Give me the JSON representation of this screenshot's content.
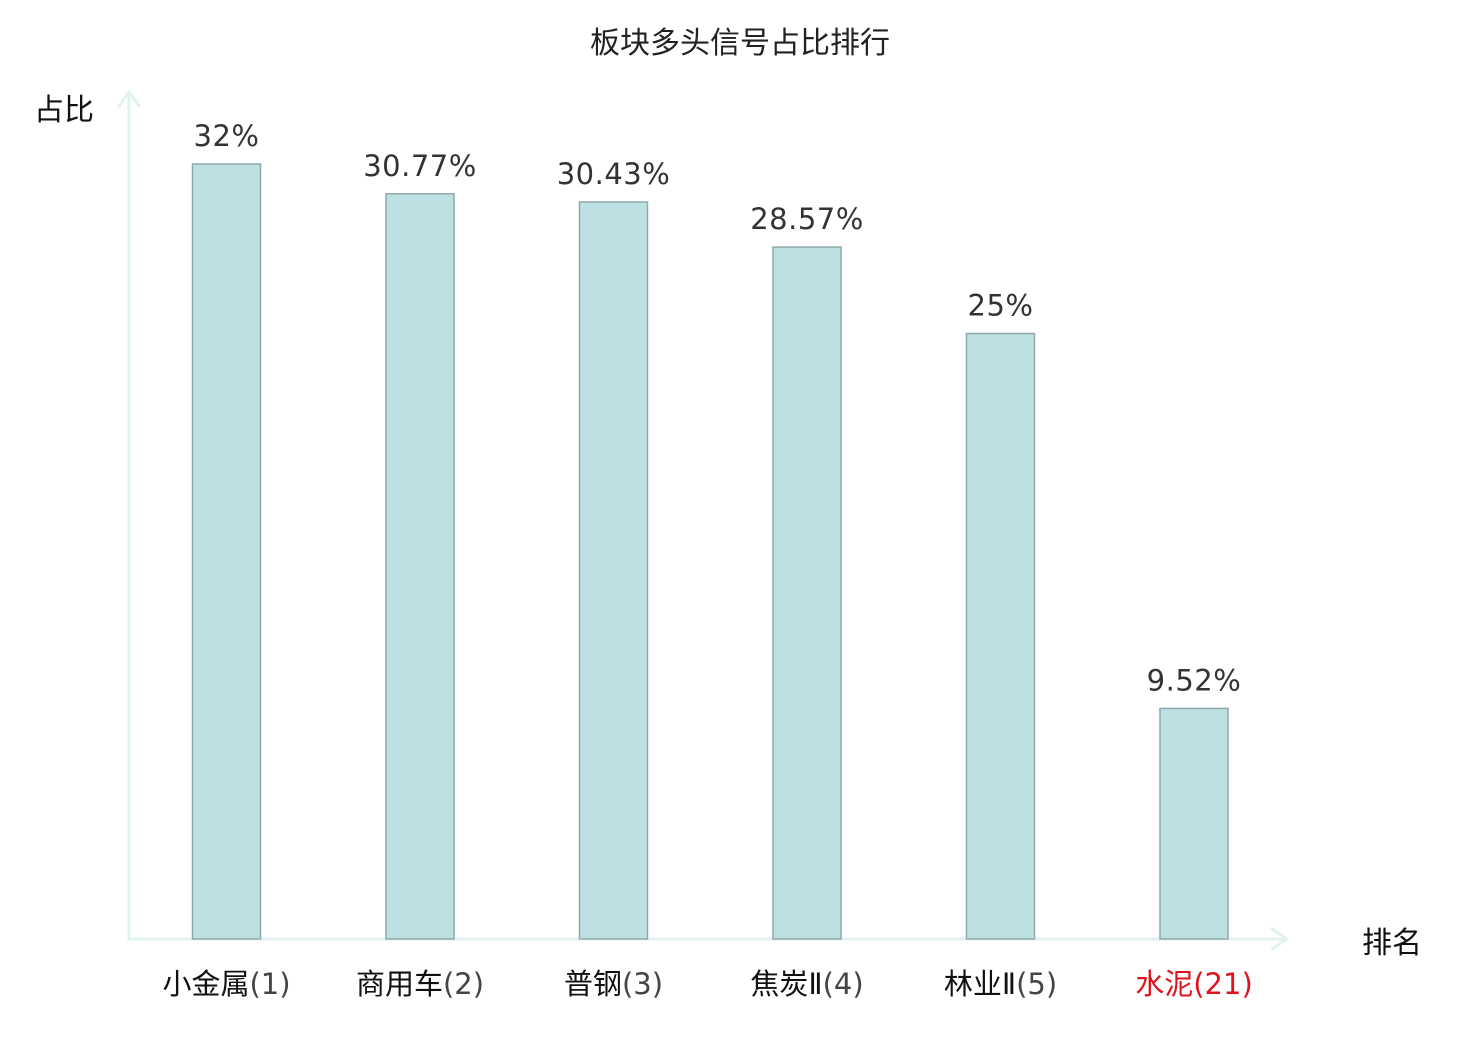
{
  "chart_data": {
    "type": "bar",
    "title": "板块多头信号占比排行",
    "ylabel": "占比",
    "xlabel": "排名",
    "ylim": [
      0,
      35
    ],
    "grid": false,
    "categories": [
      {
        "name": "小金属",
        "rank": "(1)",
        "highlight": false
      },
      {
        "name": "商用车",
        "rank": "(2)",
        "highlight": false
      },
      {
        "name": "普钢",
        "rank": "(3)",
        "highlight": false
      },
      {
        "name": "焦炭Ⅱ",
        "rank": "(4)",
        "highlight": false
      },
      {
        "name": "林业Ⅱ",
        "rank": "(5)",
        "highlight": false
      },
      {
        "name": "水泥",
        "rank": "(21)",
        "highlight": true
      }
    ],
    "values": [
      32,
      30.77,
      30.43,
      28.57,
      25,
      9.52
    ],
    "value_labels": [
      "32%",
      "30.77%",
      "30.43%",
      "28.57%",
      "25%",
      "9.52%"
    ]
  },
  "colors": {
    "bar_fill": "#bde0e3",
    "bar_stroke": "#8fa9ab",
    "axis": "#e2f2f0",
    "category_text": "#111111",
    "rank_text": "#444444",
    "highlight_text": "#e0121c"
  }
}
